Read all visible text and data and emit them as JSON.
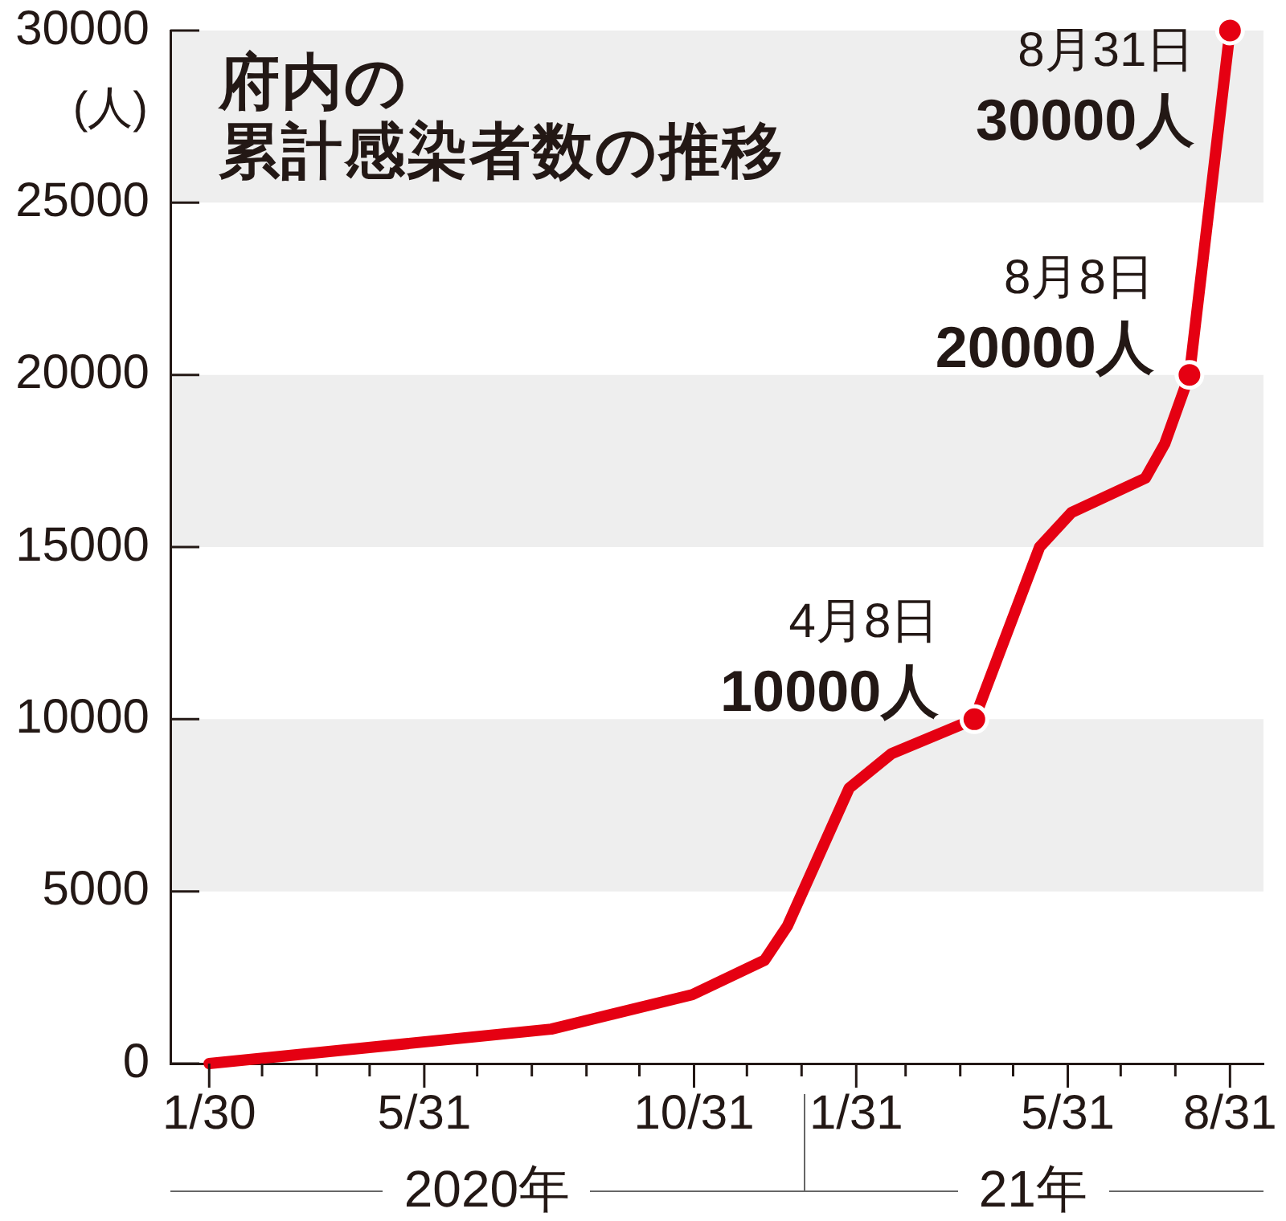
{
  "chart_data": {
    "type": "line",
    "title": "府内の",
    "subtitle": "累計感染者数の推移",
    "ylabel": "(人)",
    "xlim": [
      "2020-01-08",
      "2021-09-19"
    ],
    "xticks": [
      {
        "value": "2020-01-30",
        "label": "1/30"
      },
      {
        "value": "2020-02-29",
        "label": null
      },
      {
        "value": "2020-03-31",
        "label": null
      },
      {
        "value": "2020-04-30",
        "label": null
      },
      {
        "value": "2020-05-31",
        "label": "5/31"
      },
      {
        "value": "2020-06-30",
        "label": null
      },
      {
        "value": "2020-07-31",
        "label": null
      },
      {
        "value": "2020-08-31",
        "label": null
      },
      {
        "value": "2020-09-30",
        "label": null
      },
      {
        "value": "2020-10-31",
        "label": "10/31"
      },
      {
        "value": "2020-11-30",
        "label": null
      },
      {
        "value": "2020-12-31",
        "label": null
      },
      {
        "value": "2021-01-31",
        "label": "1/31"
      },
      {
        "value": "2021-02-28",
        "label": null
      },
      {
        "value": "2021-03-31",
        "label": null
      },
      {
        "value": "2021-04-30",
        "label": null
      },
      {
        "value": "2021-05-31",
        "label": "5/31"
      },
      {
        "value": "2021-06-30",
        "label": null
      },
      {
        "value": "2021-07-31",
        "label": null
      },
      {
        "value": "2021-08-31",
        "label": "8/31"
      }
    ],
    "ylim": [
      0,
      30000
    ],
    "yticks": [
      0,
      5000,
      10000,
      15000,
      20000,
      25000,
      30000
    ],
    "bands": [
      {
        "axis": "y",
        "from": 5000,
        "to": 10000,
        "color": "#eeeeee"
      },
      {
        "axis": "y",
        "from": 15000,
        "to": 20000,
        "color": "#eeeeee"
      },
      {
        "axis": "y",
        "from": 25000,
        "to": 30000,
        "color": "#eeeeee"
      }
    ],
    "series": [
      {
        "type": "line",
        "color": "#e50012",
        "marker": "none",
        "x": [
          "2020-01-30",
          "2020-08-11",
          "2020-10-30",
          "2020-12-10",
          "2020-12-23",
          "2021-01-27",
          "2021-02-20",
          "2021-04-08",
          "2021-05-15",
          "2021-06-02",
          "2021-07-14",
          "2021-07-25",
          "2021-08-08",
          "2021-08-31"
        ],
        "values": [
          0,
          1000,
          2000,
          3000,
          4000,
          8000,
          9000,
          10000,
          15000,
          16000,
          17000,
          18000,
          20000,
          30000
        ]
      },
      {
        "type": "scatter",
        "color": "#e50012",
        "marker": "circle",
        "x": [
          "2021-04-08",
          "2021-08-08",
          "2021-08-31"
        ],
        "values": [
          10000,
          20000,
          30000
        ]
      }
    ],
    "annotations": [
      {
        "text": "4月8日\n10000人",
        "x": "2021-04-08",
        "y": 10000
      },
      {
        "text": "8月8日\n20000人",
        "x": "2021-08-08",
        "y": 20000
      },
      {
        "text": "8月31日\n30000人",
        "x": "2021-08-31",
        "y": 30000
      },
      "2020年",
      "21年"
    ]
  }
}
